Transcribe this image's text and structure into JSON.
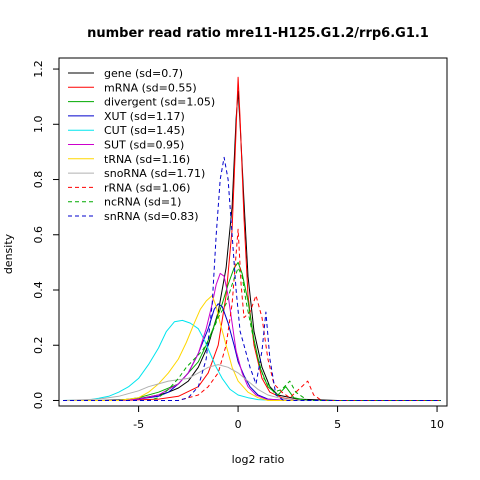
{
  "chart_data": {
    "type": "line",
    "title": "number read ratio mre11-H125.G1.2/rrp6.G1.1",
    "xlabel": "log2 ratio",
    "ylabel": "density",
    "xlim": [
      -9,
      10.5
    ],
    "ylim": [
      -0.02,
      1.24
    ],
    "xticks": [
      -5,
      0,
      5,
      10
    ],
    "yticks": [
      0.0,
      0.2,
      0.4,
      0.6,
      0.8,
      1.0,
      1.2
    ],
    "legend_position": "top-left",
    "grid": false,
    "series": [
      {
        "name": "gene (sd=0.7)",
        "color": "#000000",
        "dash": false,
        "points": [
          [
            -8.8,
            0
          ],
          [
            -7,
            0
          ],
          [
            -6,
            0.002
          ],
          [
            -5,
            0.006
          ],
          [
            -4,
            0.02
          ],
          [
            -3.5,
            0.03
          ],
          [
            -3,
            0.045
          ],
          [
            -2.5,
            0.07
          ],
          [
            -2,
            0.12
          ],
          [
            -1.5,
            0.2
          ],
          [
            -1,
            0.32
          ],
          [
            -0.6,
            0.48
          ],
          [
            -0.3,
            0.7
          ],
          [
            -0.1,
            1.02
          ],
          [
            0,
            1.12
          ],
          [
            0.1,
            1.0
          ],
          [
            0.3,
            0.72
          ],
          [
            0.5,
            0.45
          ],
          [
            0.8,
            0.25
          ],
          [
            1.2,
            0.12
          ],
          [
            1.6,
            0.05
          ],
          [
            2,
            0.02
          ],
          [
            3,
            0.005
          ],
          [
            5,
            0
          ],
          [
            10.2,
            0
          ]
        ]
      },
      {
        "name": "mRNA (sd=0.55)",
        "color": "#ff0000",
        "dash": false,
        "points": [
          [
            -8.8,
            0
          ],
          [
            -6,
            0
          ],
          [
            -4,
            0.005
          ],
          [
            -3,
            0.015
          ],
          [
            -2,
            0.05
          ],
          [
            -1.5,
            0.1
          ],
          [
            -1,
            0.2
          ],
          [
            -0.6,
            0.38
          ],
          [
            -0.3,
            0.62
          ],
          [
            -0.1,
            0.98
          ],
          [
            0,
            1.17
          ],
          [
            0.1,
            1.02
          ],
          [
            0.3,
            0.66
          ],
          [
            0.5,
            0.38
          ],
          [
            0.8,
            0.2
          ],
          [
            1.2,
            0.08
          ],
          [
            1.6,
            0.03
          ],
          [
            2.2,
            0.01
          ],
          [
            3,
            0
          ],
          [
            10.2,
            0
          ]
        ]
      },
      {
        "name": "divergent (sd=1.05)",
        "color": "#00aa00",
        "dash": false,
        "points": [
          [
            -8.8,
            0
          ],
          [
            -6,
            0
          ],
          [
            -5,
            0.01
          ],
          [
            -4,
            0.03
          ],
          [
            -3,
            0.06
          ],
          [
            -2.5,
            0.1
          ],
          [
            -2,
            0.14
          ],
          [
            -1.6,
            0.2
          ],
          [
            -1.2,
            0.27
          ],
          [
            -0.8,
            0.35
          ],
          [
            -0.5,
            0.42
          ],
          [
            -0.2,
            0.48
          ],
          [
            0,
            0.5
          ],
          [
            0.2,
            0.46
          ],
          [
            0.5,
            0.36
          ],
          [
            0.8,
            0.22
          ],
          [
            1.1,
            0.12
          ],
          [
            1.5,
            0.05
          ],
          [
            2,
            0.02
          ],
          [
            2.4,
            0.05
          ],
          [
            2.8,
            0.01
          ],
          [
            3.5,
            0
          ],
          [
            10.2,
            0
          ]
        ]
      },
      {
        "name": "XUT (sd=1.17)",
        "color": "#0000cc",
        "dash": false,
        "points": [
          [
            -8.8,
            0
          ],
          [
            -6,
            0
          ],
          [
            -5,
            0.005
          ],
          [
            -4,
            0.015
          ],
          [
            -3.5,
            0.03
          ],
          [
            -3,
            0.06
          ],
          [
            -2.5,
            0.1
          ],
          [
            -2,
            0.17
          ],
          [
            -1.5,
            0.26
          ],
          [
            -1.2,
            0.33
          ],
          [
            -1,
            0.35
          ],
          [
            -0.8,
            0.34
          ],
          [
            -0.5,
            0.28
          ],
          [
            -0.2,
            0.2
          ],
          [
            0,
            0.14
          ],
          [
            0.3,
            0.09
          ],
          [
            0.6,
            0.05
          ],
          [
            1,
            0.02
          ],
          [
            1.5,
            0.005
          ],
          [
            2.5,
            0
          ],
          [
            10.2,
            0
          ]
        ]
      },
      {
        "name": "CUT (sd=1.45)",
        "color": "#00e5ee",
        "dash": false,
        "points": [
          [
            -8.8,
            0
          ],
          [
            -7.5,
            0.002
          ],
          [
            -7,
            0.008
          ],
          [
            -6.5,
            0.015
          ],
          [
            -6,
            0.03
          ],
          [
            -5.5,
            0.05
          ],
          [
            -5,
            0.08
          ],
          [
            -4.5,
            0.13
          ],
          [
            -4,
            0.19
          ],
          [
            -3.6,
            0.25
          ],
          [
            -3.2,
            0.285
          ],
          [
            -2.8,
            0.29
          ],
          [
            -2.4,
            0.28
          ],
          [
            -2,
            0.26
          ],
          [
            -1.7,
            0.22
          ],
          [
            -1.4,
            0.17
          ],
          [
            -1.1,
            0.12
          ],
          [
            -0.8,
            0.08
          ],
          [
            -0.4,
            0.04
          ],
          [
            0,
            0.02
          ],
          [
            0.5,
            0.01
          ],
          [
            1,
            0.003
          ],
          [
            2,
            0
          ],
          [
            10.2,
            0
          ]
        ]
      },
      {
        "name": "SUT (sd=0.95)",
        "color": "#cc00cc",
        "dash": false,
        "points": [
          [
            -8.8,
            0
          ],
          [
            -6,
            0
          ],
          [
            -5,
            0.005
          ],
          [
            -4,
            0.02
          ],
          [
            -3.5,
            0.04
          ],
          [
            -3,
            0.06
          ],
          [
            -2.5,
            0.1
          ],
          [
            -2,
            0.17
          ],
          [
            -1.6,
            0.26
          ],
          [
            -1.3,
            0.35
          ],
          [
            -1.1,
            0.42
          ],
          [
            -0.9,
            0.46
          ],
          [
            -0.7,
            0.45
          ],
          [
            -0.5,
            0.38
          ],
          [
            -0.3,
            0.28
          ],
          [
            -0.1,
            0.18
          ],
          [
            0.2,
            0.1
          ],
          [
            0.5,
            0.05
          ],
          [
            0.9,
            0.02
          ],
          [
            1.4,
            0.005
          ],
          [
            2.5,
            0
          ],
          [
            10.2,
            0
          ]
        ]
      },
      {
        "name": "tRNA (sd=1.16)",
        "color": "#ffd700",
        "dash": false,
        "points": [
          [
            -8.8,
            0
          ],
          [
            -6,
            0
          ],
          [
            -5,
            0.01
          ],
          [
            -4.5,
            0.03
          ],
          [
            -4,
            0.06
          ],
          [
            -3.5,
            0.1
          ],
          [
            -3,
            0.15
          ],
          [
            -2.6,
            0.21
          ],
          [
            -2.2,
            0.28
          ],
          [
            -1.9,
            0.33
          ],
          [
            -1.6,
            0.36
          ],
          [
            -1.3,
            0.38
          ],
          [
            -1.1,
            0.34
          ],
          [
            -0.9,
            0.28
          ],
          [
            -0.6,
            0.2
          ],
          [
            -0.3,
            0.12
          ],
          [
            0,
            0.07
          ],
          [
            0.5,
            0.03
          ],
          [
            1,
            0.01
          ],
          [
            1.5,
            0
          ],
          [
            10.2,
            0
          ]
        ]
      },
      {
        "name": "snoRNA (sd=1.71)",
        "color": "#b0b0b0",
        "dash": false,
        "points": [
          [
            -8.8,
            0
          ],
          [
            -7,
            0.005
          ],
          [
            -6,
            0.015
          ],
          [
            -5,
            0.035
          ],
          [
            -4.5,
            0.05
          ],
          [
            -4,
            0.06
          ],
          [
            -3.5,
            0.07
          ],
          [
            -3,
            0.075
          ],
          [
            -2.5,
            0.08
          ],
          [
            -2,
            0.1
          ],
          [
            -1.5,
            0.12
          ],
          [
            -1,
            0.13
          ],
          [
            -0.5,
            0.12
          ],
          [
            0,
            0.1
          ],
          [
            0.5,
            0.07
          ],
          [
            1,
            0.04
          ],
          [
            1.5,
            0.02
          ],
          [
            2,
            0.01
          ],
          [
            3,
            0
          ],
          [
            10.2,
            0
          ]
        ]
      },
      {
        "name": "rRNA (sd=1.06)",
        "color": "#ff0000",
        "dash": true,
        "points": [
          [
            -8.8,
            0
          ],
          [
            -3,
            0
          ],
          [
            -2,
            0.02
          ],
          [
            -1.5,
            0.05
          ],
          [
            -1,
            0.1
          ],
          [
            -0.6,
            0.2
          ],
          [
            -0.3,
            0.35
          ],
          [
            0,
            0.62
          ],
          [
            0.15,
            0.42
          ],
          [
            0.3,
            0.3
          ],
          [
            0.6,
            0.32
          ],
          [
            0.9,
            0.38
          ],
          [
            1.2,
            0.3
          ],
          [
            1.5,
            0.15
          ],
          [
            1.8,
            0.06
          ],
          [
            2.2,
            0.03
          ],
          [
            2.6,
            0.01
          ],
          [
            3.2,
            0.05
          ],
          [
            3.5,
            0.07
          ],
          [
            3.8,
            0.02
          ],
          [
            4.2,
            0
          ],
          [
            10.2,
            0
          ]
        ]
      },
      {
        "name": "ncRNA (sd=1)",
        "color": "#00aa00",
        "dash": true,
        "points": [
          [
            -8.8,
            0
          ],
          [
            -4.5,
            0
          ],
          [
            -4,
            0.01
          ],
          [
            -3.5,
            0.04
          ],
          [
            -3,
            0.08
          ],
          [
            -2.6,
            0.12
          ],
          [
            -2.2,
            0.15
          ],
          [
            -1.8,
            0.18
          ],
          [
            -1.4,
            0.23
          ],
          [
            -1,
            0.3
          ],
          [
            -0.6,
            0.35
          ],
          [
            -0.3,
            0.42
          ],
          [
            0,
            0.48
          ],
          [
            0.2,
            0.45
          ],
          [
            0.4,
            0.36
          ],
          [
            0.7,
            0.25
          ],
          [
            1,
            0.15
          ],
          [
            1.3,
            0.08
          ],
          [
            1.8,
            0.03
          ],
          [
            2.2,
            0.04
          ],
          [
            2.6,
            0.07
          ],
          [
            2.9,
            0.03
          ],
          [
            3.5,
            0
          ],
          [
            10.2,
            0
          ]
        ]
      },
      {
        "name": "snRNA (sd=0.83)",
        "color": "#0000cc",
        "dash": true,
        "points": [
          [
            -8.8,
            0
          ],
          [
            -3,
            0
          ],
          [
            -2.5,
            0.01
          ],
          [
            -2,
            0.05
          ],
          [
            -1.6,
            0.15
          ],
          [
            -1.3,
            0.35
          ],
          [
            -1.1,
            0.6
          ],
          [
            -0.9,
            0.8
          ],
          [
            -0.7,
            0.88
          ],
          [
            -0.5,
            0.8
          ],
          [
            -0.3,
            0.6
          ],
          [
            -0.1,
            0.4
          ],
          [
            0.1,
            0.25
          ],
          [
            0.3,
            0.2
          ],
          [
            0.6,
            0.12
          ],
          [
            0.9,
            0.06
          ],
          [
            1.2,
            0.18
          ],
          [
            1.4,
            0.32
          ],
          [
            1.6,
            0.15
          ],
          [
            1.9,
            0.02
          ],
          [
            2.3,
            0
          ],
          [
            10.2,
            0
          ]
        ]
      }
    ]
  }
}
